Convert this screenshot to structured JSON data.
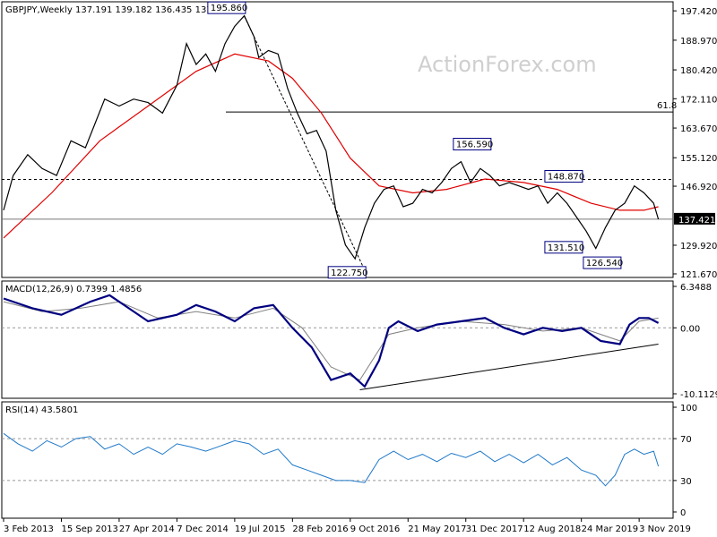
{
  "header": {
    "symbol": "GBPJPY,Weekly",
    "ohlc": "137.191 139.182 136.435 137.421"
  },
  "watermark": "ActionForex.com",
  "colors": {
    "price": "#000000",
    "ma": "#e00000",
    "macd": "#000080",
    "signal": "#808080",
    "rsi": "#1e78c8",
    "annotation_box": "#000080"
  },
  "chart_data": [
    {
      "type": "line",
      "panel": "price",
      "ylim": [
        121.67,
        199.0
      ],
      "y_ticks": [
        "197.420",
        "188.970",
        "180.420",
        "172.110",
        "163.670",
        "155.120",
        "146.920",
        "129.920",
        "121.670"
      ],
      "current_value": "137.421",
      "fib_label": "61.8",
      "fib_level": 168.3,
      "dotted_level_label": "148.870",
      "annotations": [
        {
          "label": "195.860",
          "value": 195.86
        },
        {
          "label": "122.750",
          "value": 122.75
        },
        {
          "label": "156.590",
          "value": 156.59
        },
        {
          "label": "148.870",
          "value": 148.87
        },
        {
          "label": "131.510",
          "value": 131.51
        },
        {
          "label": "126.540",
          "value": 126.54
        }
      ],
      "price_series": [
        {
          "x": 0,
          "y": 140
        },
        {
          "x": 2,
          "y": 150
        },
        {
          "x": 5,
          "y": 156
        },
        {
          "x": 8,
          "y": 152
        },
        {
          "x": 11,
          "y": 150
        },
        {
          "x": 14,
          "y": 160
        },
        {
          "x": 17,
          "y": 158
        },
        {
          "x": 19,
          "y": 165
        },
        {
          "x": 21,
          "y": 172
        },
        {
          "x": 24,
          "y": 170
        },
        {
          "x": 27,
          "y": 172
        },
        {
          "x": 30,
          "y": 171
        },
        {
          "x": 33,
          "y": 168
        },
        {
          "x": 36,
          "y": 176
        },
        {
          "x": 38,
          "y": 188
        },
        {
          "x": 40,
          "y": 182
        },
        {
          "x": 42,
          "y": 185
        },
        {
          "x": 44,
          "y": 180
        },
        {
          "x": 46,
          "y": 188
        },
        {
          "x": 48,
          "y": 193
        },
        {
          "x": 50,
          "y": 196
        },
        {
          "x": 52,
          "y": 190
        },
        {
          "x": 53,
          "y": 184
        },
        {
          "x": 55,
          "y": 186
        },
        {
          "x": 57,
          "y": 185
        },
        {
          "x": 59,
          "y": 175
        },
        {
          "x": 61,
          "y": 168
        },
        {
          "x": 63,
          "y": 162
        },
        {
          "x": 65,
          "y": 163
        },
        {
          "x": 67,
          "y": 157
        },
        {
          "x": 69,
          "y": 140
        },
        {
          "x": 71,
          "y": 130
        },
        {
          "x": 73,
          "y": 126
        },
        {
          "x": 75,
          "y": 135
        },
        {
          "x": 77,
          "y": 142
        },
        {
          "x": 79,
          "y": 146
        },
        {
          "x": 81,
          "y": 147
        },
        {
          "x": 83,
          "y": 141
        },
        {
          "x": 85,
          "y": 142
        },
        {
          "x": 87,
          "y": 146
        },
        {
          "x": 89,
          "y": 145
        },
        {
          "x": 91,
          "y": 148
        },
        {
          "x": 93,
          "y": 152
        },
        {
          "x": 95,
          "y": 154
        },
        {
          "x": 97,
          "y": 148
        },
        {
          "x": 99,
          "y": 152
        },
        {
          "x": 101,
          "y": 150
        },
        {
          "x": 103,
          "y": 147
        },
        {
          "x": 105,
          "y": 148
        },
        {
          "x": 107,
          "y": 147
        },
        {
          "x": 109,
          "y": 146
        },
        {
          "x": 111,
          "y": 147
        },
        {
          "x": 113,
          "y": 142
        },
        {
          "x": 115,
          "y": 145
        },
        {
          "x": 117,
          "y": 142
        },
        {
          "x": 119,
          "y": 138
        },
        {
          "x": 121,
          "y": 134
        },
        {
          "x": 123,
          "y": 129
        },
        {
          "x": 125,
          "y": 135
        },
        {
          "x": 127,
          "y": 140
        },
        {
          "x": 129,
          "y": 142
        },
        {
          "x": 131,
          "y": 147
        },
        {
          "x": 133,
          "y": 145
        },
        {
          "x": 135,
          "y": 142
        },
        {
          "x": 136,
          "y": 137.4
        }
      ],
      "ma_series": [
        {
          "x": 0,
          "y": 132
        },
        {
          "x": 10,
          "y": 145
        },
        {
          "x": 20,
          "y": 160
        },
        {
          "x": 30,
          "y": 170
        },
        {
          "x": 40,
          "y": 180
        },
        {
          "x": 48,
          "y": 185
        },
        {
          "x": 55,
          "y": 183
        },
        {
          "x": 60,
          "y": 178
        },
        {
          "x": 66,
          "y": 168
        },
        {
          "x": 72,
          "y": 155
        },
        {
          "x": 78,
          "y": 147
        },
        {
          "x": 85,
          "y": 145
        },
        {
          "x": 92,
          "y": 146
        },
        {
          "x": 100,
          "y": 149
        },
        {
          "x": 108,
          "y": 148
        },
        {
          "x": 115,
          "y": 146
        },
        {
          "x": 122,
          "y": 142
        },
        {
          "x": 128,
          "y": 140
        },
        {
          "x": 133,
          "y": 140
        },
        {
          "x": 136,
          "y": 141
        }
      ]
    },
    {
      "type": "line",
      "panel": "macd",
      "title": "MACD(12,26,9) 0.7399 1.4856",
      "ylim": [
        -10.1129,
        6.3488
      ],
      "y_ticks": [
        "6.3488",
        "0.00",
        "-10.1129"
      ],
      "macd_series": [
        {
          "x": 0,
          "y": 4.5
        },
        {
          "x": 6,
          "y": 3
        },
        {
          "x": 12,
          "y": 2
        },
        {
          "x": 18,
          "y": 4
        },
        {
          "x": 22,
          "y": 5
        },
        {
          "x": 26,
          "y": 3
        },
        {
          "x": 30,
          "y": 1
        },
        {
          "x": 36,
          "y": 2
        },
        {
          "x": 40,
          "y": 3.5
        },
        {
          "x": 44,
          "y": 2.5
        },
        {
          "x": 48,
          "y": 1
        },
        {
          "x": 52,
          "y": 3
        },
        {
          "x": 56,
          "y": 3.5
        },
        {
          "x": 60,
          "y": 0
        },
        {
          "x": 64,
          "y": -3
        },
        {
          "x": 68,
          "y": -8
        },
        {
          "x": 72,
          "y": -7
        },
        {
          "x": 75,
          "y": -9
        },
        {
          "x": 78,
          "y": -5
        },
        {
          "x": 80,
          "y": 0
        },
        {
          "x": 82,
          "y": 1
        },
        {
          "x": 86,
          "y": -0.5
        },
        {
          "x": 90,
          "y": 0.5
        },
        {
          "x": 95,
          "y": 1
        },
        {
          "x": 100,
          "y": 1.5
        },
        {
          "x": 104,
          "y": 0
        },
        {
          "x": 108,
          "y": -1
        },
        {
          "x": 112,
          "y": 0
        },
        {
          "x": 116,
          "y": -0.5
        },
        {
          "x": 120,
          "y": 0
        },
        {
          "x": 124,
          "y": -2
        },
        {
          "x": 128,
          "y": -2.5
        },
        {
          "x": 130,
          "y": 0.5
        },
        {
          "x": 132,
          "y": 1.5
        },
        {
          "x": 134,
          "y": 1.5
        },
        {
          "x": 136,
          "y": 0.74
        }
      ],
      "signal_series": [
        {
          "x": 0,
          "y": 4
        },
        {
          "x": 8,
          "y": 2.5
        },
        {
          "x": 16,
          "y": 3
        },
        {
          "x": 24,
          "y": 4
        },
        {
          "x": 32,
          "y": 1.5
        },
        {
          "x": 40,
          "y": 2.5
        },
        {
          "x": 48,
          "y": 1.5
        },
        {
          "x": 56,
          "y": 3
        },
        {
          "x": 62,
          "y": 0
        },
        {
          "x": 68,
          "y": -6
        },
        {
          "x": 74,
          "y": -8
        },
        {
          "x": 80,
          "y": -1
        },
        {
          "x": 86,
          "y": 0
        },
        {
          "x": 95,
          "y": 1
        },
        {
          "x": 104,
          "y": 0.5
        },
        {
          "x": 112,
          "y": -0.5
        },
        {
          "x": 120,
          "y": 0
        },
        {
          "x": 128,
          "y": -2
        },
        {
          "x": 132,
          "y": 1
        },
        {
          "x": 136,
          "y": 1.49
        }
      ],
      "trendline": [
        {
          "x": 74,
          "y": -9.5
        },
        {
          "x": 136,
          "y": -2.5
        }
      ]
    },
    {
      "type": "line",
      "panel": "rsi",
      "title": "RSI(14) 43.5801",
      "ylim": [
        0,
        100
      ],
      "y_ticks": [
        "100",
        "70",
        "30",
        "0"
      ],
      "levels": [
        70,
        30
      ],
      "rsi_series": [
        {
          "x": 0,
          "y": 75
        },
        {
          "x": 3,
          "y": 65
        },
        {
          "x": 6,
          "y": 58
        },
        {
          "x": 9,
          "y": 68
        },
        {
          "x": 12,
          "y": 62
        },
        {
          "x": 15,
          "y": 70
        },
        {
          "x": 18,
          "y": 72
        },
        {
          "x": 21,
          "y": 60
        },
        {
          "x": 24,
          "y": 65
        },
        {
          "x": 27,
          "y": 55
        },
        {
          "x": 30,
          "y": 62
        },
        {
          "x": 33,
          "y": 55
        },
        {
          "x": 36,
          "y": 65
        },
        {
          "x": 39,
          "y": 62
        },
        {
          "x": 42,
          "y": 58
        },
        {
          "x": 45,
          "y": 63
        },
        {
          "x": 48,
          "y": 68
        },
        {
          "x": 51,
          "y": 65
        },
        {
          "x": 54,
          "y": 55
        },
        {
          "x": 57,
          "y": 60
        },
        {
          "x": 60,
          "y": 45
        },
        {
          "x": 63,
          "y": 40
        },
        {
          "x": 66,
          "y": 35
        },
        {
          "x": 69,
          "y": 30
        },
        {
          "x": 72,
          "y": 30
        },
        {
          "x": 75,
          "y": 28
        },
        {
          "x": 78,
          "y": 50
        },
        {
          "x": 81,
          "y": 58
        },
        {
          "x": 84,
          "y": 50
        },
        {
          "x": 87,
          "y": 55
        },
        {
          "x": 90,
          "y": 48
        },
        {
          "x": 93,
          "y": 56
        },
        {
          "x": 96,
          "y": 52
        },
        {
          "x": 99,
          "y": 58
        },
        {
          "x": 102,
          "y": 48
        },
        {
          "x": 105,
          "y": 55
        },
        {
          "x": 108,
          "y": 47
        },
        {
          "x": 111,
          "y": 55
        },
        {
          "x": 114,
          "y": 45
        },
        {
          "x": 117,
          "y": 52
        },
        {
          "x": 120,
          "y": 40
        },
        {
          "x": 123,
          "y": 35
        },
        {
          "x": 125,
          "y": 25
        },
        {
          "x": 127,
          "y": 35
        },
        {
          "x": 129,
          "y": 55
        },
        {
          "x": 131,
          "y": 60
        },
        {
          "x": 133,
          "y": 55
        },
        {
          "x": 135,
          "y": 58
        },
        {
          "x": 136,
          "y": 43.58
        }
      ]
    }
  ],
  "x_axis": {
    "labels": [
      "3 Feb 2013",
      "15 Sep 2013",
      "27 Apr 2014",
      "7 Dec 2014",
      "19 Jul 2015",
      "28 Feb 2016",
      "9 Oct 2016",
      "21 May 2017",
      "31 Dec 2017",
      "12 Aug 2018",
      "24 Mar 2019",
      "3 Nov 2019"
    ],
    "label_x": [
      0,
      12,
      24,
      36,
      48,
      60,
      72,
      84,
      96,
      108,
      120,
      132
    ],
    "xlim": [
      0,
      137
    ]
  }
}
